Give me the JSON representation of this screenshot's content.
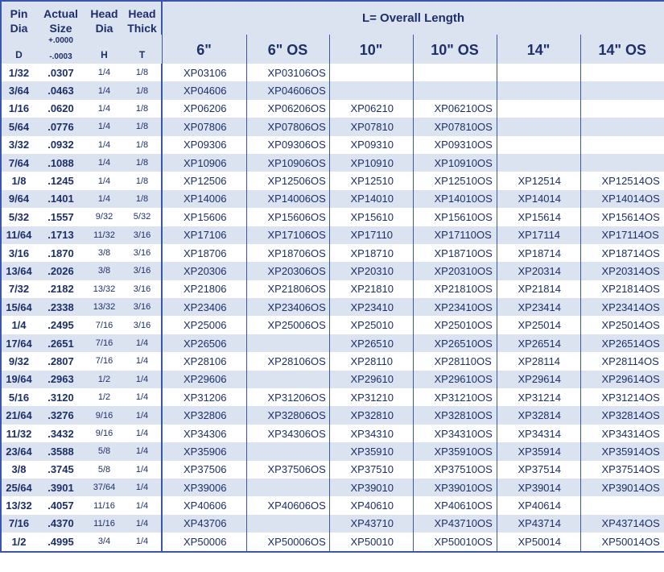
{
  "header": {
    "columns": [
      {
        "label": "Pin Dia",
        "symbol": "D"
      },
      {
        "label": "Actual Size",
        "tolerance_plus": "+.0000",
        "tolerance_minus": "-.0003"
      },
      {
        "label": "Head Dia",
        "symbol": "H"
      },
      {
        "label": "Head Thick",
        "symbol": "T"
      }
    ],
    "length_title": "L= Overall Length",
    "lengths": [
      "6\"",
      "6\" OS",
      "10\"",
      "10\" OS",
      "14\"",
      "14\" OS"
    ]
  },
  "table": {
    "rows": [
      [
        "1/32",
        ".0307",
        "1/4",
        "1/8",
        "XP03106",
        "XP03106OS",
        null,
        null,
        null,
        null
      ],
      [
        "3/64",
        ".0463",
        "1/4",
        "1/8",
        "XP04606",
        "XP04606OS",
        null,
        null,
        null,
        null
      ],
      [
        "1/16",
        ".0620",
        "1/4",
        "1/8",
        "XP06206",
        "XP06206OS",
        "XP06210",
        "XP06210OS",
        null,
        null
      ],
      [
        "5/64",
        ".0776",
        "1/4",
        "1/8",
        "XP07806",
        "XP07806OS",
        "XP07810",
        "XP07810OS",
        null,
        null
      ],
      [
        "3/32",
        ".0932",
        "1/4",
        "1/8",
        "XP09306",
        "XP09306OS",
        "XP09310",
        "XP09310OS",
        null,
        null
      ],
      [
        "7/64",
        ".1088",
        "1/4",
        "1/8",
        "XP10906",
        "XP10906OS",
        "XP10910",
        "XP10910OS",
        null,
        null
      ],
      [
        "1/8",
        ".1245",
        "1/4",
        "1/8",
        "XP12506",
        "XP12506OS",
        "XP12510",
        "XP12510OS",
        "XP12514",
        "XP12514OS"
      ],
      [
        "9/64",
        ".1401",
        "1/4",
        "1/8",
        "XP14006",
        "XP14006OS",
        "XP14010",
        "XP14010OS",
        "XP14014",
        "XP14014OS"
      ],
      [
        "5/32",
        ".1557",
        "9/32",
        "5/32",
        "XP15606",
        "XP15606OS",
        "XP15610",
        "XP15610OS",
        "XP15614",
        "XP15614OS"
      ],
      [
        "11/64",
        ".1713",
        "11/32",
        "3/16",
        "XP17106",
        "XP17106OS",
        "XP17110",
        "XP17110OS",
        "XP17114",
        "XP17114OS"
      ],
      [
        "3/16",
        ".1870",
        "3/8",
        "3/16",
        "XP18706",
        "XP18706OS",
        "XP18710",
        "XP18710OS",
        "XP18714",
        "XP18714OS"
      ],
      [
        "13/64",
        ".2026",
        "3/8",
        "3/16",
        "XP20306",
        "XP20306OS",
        "XP20310",
        "XP20310OS",
        "XP20314",
        "XP20314OS"
      ],
      [
        "7/32",
        ".2182",
        "13/32",
        "3/16",
        "XP21806",
        "XP21806OS",
        "XP21810",
        "XP21810OS",
        "XP21814",
        "XP21814OS"
      ],
      [
        "15/64",
        ".2338",
        "13/32",
        "3/16",
        "XP23406",
        "XP23406OS",
        "XP23410",
        "XP23410OS",
        "XP23414",
        "XP23414OS"
      ],
      [
        "1/4",
        ".2495",
        "7/16",
        "3/16",
        "XP25006",
        "XP25006OS",
        "XP25010",
        "XP25010OS",
        "XP25014",
        "XP25014OS"
      ],
      [
        "17/64",
        ".2651",
        "7/16",
        "1/4",
        "XP26506",
        null,
        "XP26510",
        "XP26510OS",
        "XP26514",
        "XP26514OS"
      ],
      [
        "9/32",
        ".2807",
        "7/16",
        "1/4",
        "XP28106",
        "XP28106OS",
        "XP28110",
        "XP28110OS",
        "XP28114",
        "XP28114OS"
      ],
      [
        "19/64",
        ".2963",
        "1/2",
        "1/4",
        "XP29606",
        null,
        "XP29610",
        "XP29610OS",
        "XP29614",
        "XP29614OS"
      ],
      [
        "5/16",
        ".3120",
        "1/2",
        "1/4",
        "XP31206",
        "XP31206OS",
        "XP31210",
        "XP31210OS",
        "XP31214",
        "XP31214OS"
      ],
      [
        "21/64",
        ".3276",
        "9/16",
        "1/4",
        "XP32806",
        "XP32806OS",
        "XP32810",
        "XP32810OS",
        "XP32814",
        "XP32814OS"
      ],
      [
        "11/32",
        ".3432",
        "9/16",
        "1/4",
        "XP34306",
        "XP34306OS",
        "XP34310",
        "XP34310OS",
        "XP34314",
        "XP34314OS"
      ],
      [
        "23/64",
        ".3588",
        "5/8",
        "1/4",
        "XP35906",
        null,
        "XP35910",
        "XP35910OS",
        "XP35914",
        "XP35914OS"
      ],
      [
        "3/8",
        ".3745",
        "5/8",
        "1/4",
        "XP37506",
        "XP37506OS",
        "XP37510",
        "XP37510OS",
        "XP37514",
        "XP37514OS"
      ],
      [
        "25/64",
        ".3901",
        "37/64",
        "1/4",
        "XP39006",
        null,
        "XP39010",
        "XP39010OS",
        "XP39014",
        "XP39014OS"
      ],
      [
        "13/32",
        ".4057",
        "11/16",
        "1/4",
        "XP40606",
        "XP40606OS",
        "XP40610",
        "XP40610OS",
        "XP40614",
        null
      ],
      [
        "7/16",
        ".4370",
        "11/16",
        "1/4",
        "XP43706",
        null,
        "XP43710",
        "XP43710OS",
        "XP43714",
        "XP43714OS"
      ],
      [
        "1/2",
        ".4995",
        "3/4",
        "1/4",
        "XP50006",
        "XP50006OS",
        "XP50010",
        "XP50010OS",
        "XP50014",
        "XP50014OS"
      ]
    ]
  }
}
